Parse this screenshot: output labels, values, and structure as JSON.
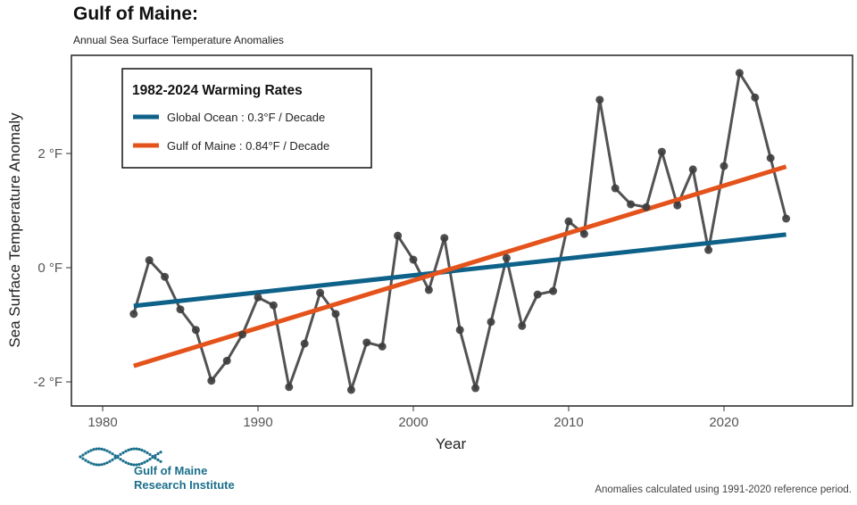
{
  "title": "Gulf of Maine:",
  "subtitle": "Annual Sea Surface Temperature Anomalies",
  "footnote": "Anomalies calculated using 1991-2020 reference period.",
  "logo": {
    "line1": "Gulf of Maine",
    "line2": "Research Institute",
    "color": "#1b6f8c"
  },
  "chart_data": {
    "type": "line",
    "xlabel": "Year",
    "ylabel": "Sea Surface Temperature Anomaly",
    "xlim": [
      1978,
      2026
    ],
    "ylim": [
      -2.4,
      3.6
    ],
    "xticks": [
      1980,
      1990,
      2000,
      2010,
      2020
    ],
    "xtick_labels": [
      "1980",
      "1990",
      "2000",
      "2010",
      "2020"
    ],
    "yticks": [
      -2,
      0,
      2
    ],
    "ytick_labels": [
      "-2 °F",
      "0 °F",
      "2 °F"
    ],
    "grid": false,
    "legend": {
      "title": "1982-2024 Warming Rates",
      "placement": "top-left",
      "entries": [
        {
          "label": "Global Ocean : 0.3°F / Decade",
          "color": "#0e6189"
        },
        {
          "label": "Gulf of Maine : 0.84°F / Decade",
          "color": "#e4531b"
        }
      ]
    },
    "series": [
      {
        "type": "line-points",
        "color": "#4a4a4a",
        "x": [
          1982,
          1983,
          1984,
          1985,
          1986,
          1987,
          1988,
          1989,
          1990,
          1991,
          1992,
          1993,
          1994,
          1995,
          1996,
          1997,
          1998,
          1999,
          2000,
          2001,
          2002,
          2003,
          2004,
          2005,
          2006,
          2007,
          2008,
          2009,
          2010,
          2011,
          2012,
          2013,
          2014,
          2015,
          2016,
          2017,
          2018,
          2019,
          2020,
          2021,
          2022,
          2023,
          2024
        ],
        "values": [
          -0.81,
          0.13,
          -0.16,
          -0.73,
          -1.09,
          -1.98,
          -1.63,
          -1.17,
          -0.52,
          -0.66,
          -2.09,
          -1.33,
          -0.44,
          -0.81,
          -2.14,
          -1.31,
          -1.38,
          0.56,
          0.14,
          -0.39,
          0.52,
          -1.09,
          -2.11,
          -0.95,
          0.17,
          -1.02,
          -0.47,
          -0.41,
          0.81,
          0.59,
          2.94,
          1.39,
          1.11,
          1.06,
          2.03,
          1.09,
          1.72,
          0.31,
          1.78,
          3.41,
          2.98,
          1.92,
          0.86
        ]
      },
      {
        "name": "Global Ocean : 0.3°F / Decade",
        "type": "trend",
        "color": "#0e6189",
        "x": [
          1982,
          2024
        ],
        "values": [
          -0.67,
          0.58
        ]
      },
      {
        "name": "Gulf of Maine : 0.84°F / Decade",
        "type": "trend",
        "color": "#e4531b",
        "x": [
          1982,
          2024
        ],
        "values": [
          -1.72,
          1.77
        ]
      }
    ]
  }
}
